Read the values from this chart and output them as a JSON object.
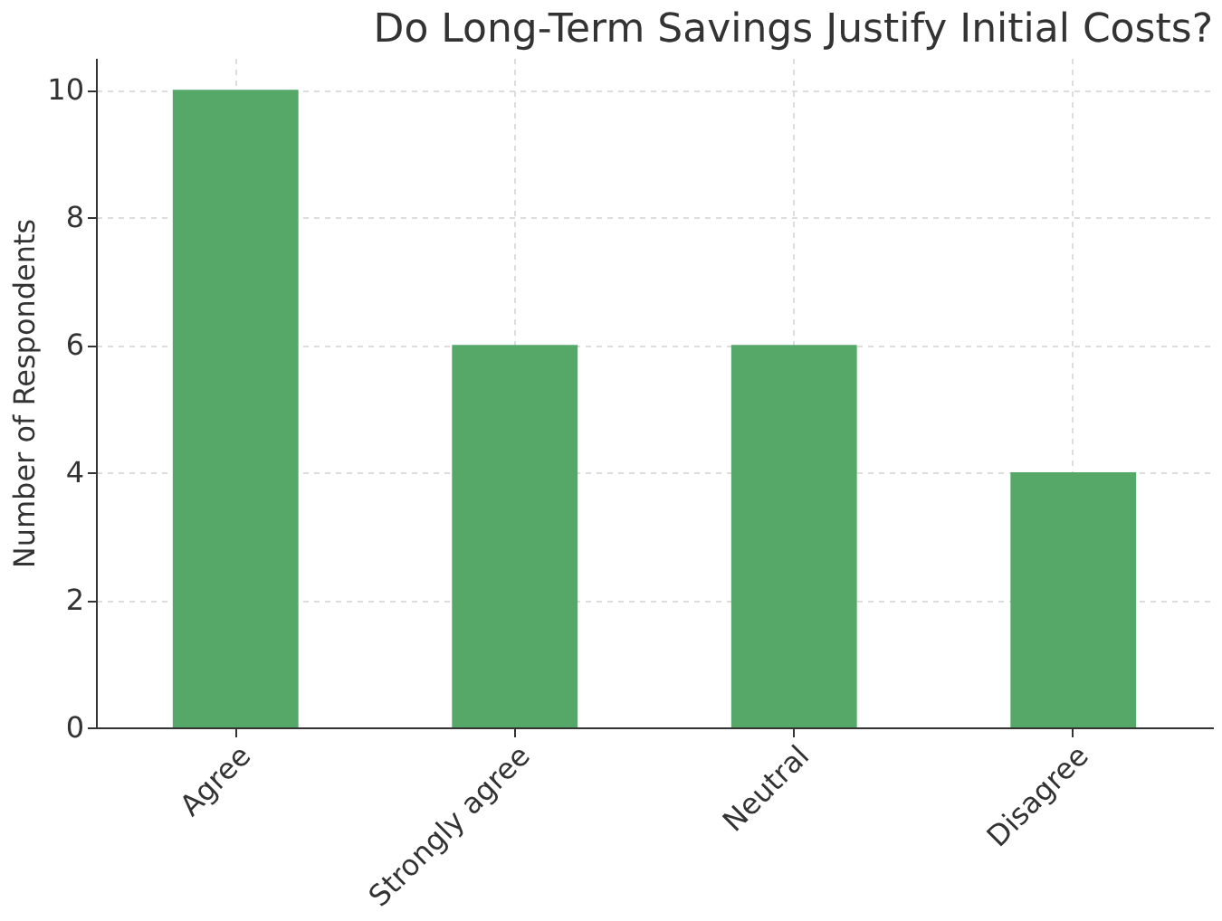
{
  "chart_data": {
    "type": "bar",
    "title": "Do Long-Term Savings Justify Initial Costs?",
    "ylabel": "Number of Respondents",
    "categories": [
      "Agree",
      "Strongly agree",
      "Neutral",
      "Disagree"
    ],
    "values": [
      10,
      6,
      6,
      4
    ],
    "color": "#55a868",
    "ylim": [
      0,
      10.5
    ],
    "yticks": [
      0,
      2,
      4,
      6,
      8,
      10
    ],
    "grid": true
  }
}
